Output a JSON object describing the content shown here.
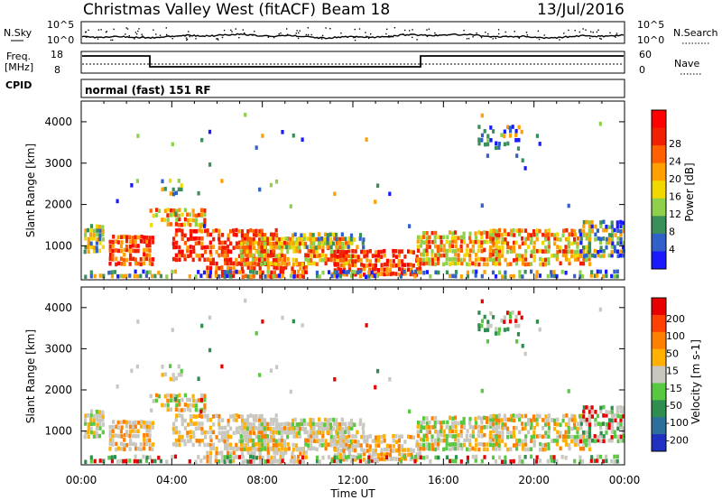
{
  "header": {
    "station": "Christmas Valley West (fitACF)",
    "beam": "Beam 18",
    "date": "13/Jul/2016"
  },
  "sky_panel": {
    "left_label": "N.Sky",
    "right_label": "N.Search",
    "left_ticks": [
      "10^5",
      "10^0"
    ],
    "right_ticks": [
      "10^5",
      "10^0"
    ]
  },
  "freq_panel": {
    "label_line1": "Freq.",
    "label_line2": "[MHz]",
    "left_ticks": [
      "18",
      "8"
    ],
    "right_ticks": [
      "60",
      "0"
    ],
    "right_label": "Nave",
    "cpid_label": "CPID",
    "cpid_value": "normal (fast) 151 RF"
  },
  "chart_data": [
    {
      "type": "heatmap",
      "title": "",
      "xlabel": "Time UT",
      "ylabel": "Slant Range [km]",
      "x_ticks": [
        "00:00",
        "04:00",
        "08:00",
        "12:00",
        "16:00",
        "20:00",
        "00:00"
      ],
      "xlim_hours": [
        0,
        24
      ],
      "ylim": [
        180,
        4500
      ],
      "y_ticks": [
        1000,
        2000,
        3000,
        4000
      ],
      "colorbar": {
        "label": "Power [dB]",
        "ticks": [
          "4",
          "8",
          "12",
          "16",
          "20",
          "24",
          "28"
        ],
        "colors": [
          "#1a1aff",
          "#3060c8",
          "#3a8f5a",
          "#8fd04a",
          "#f0d800",
          "#ffa000",
          "#ff6000",
          "#f02000",
          "#ff0000"
        ]
      }
    },
    {
      "type": "heatmap",
      "title": "",
      "xlabel": "Time UT",
      "ylabel": "Slant Range [km]",
      "x_ticks": [
        "00:00",
        "04:00",
        "08:00",
        "12:00",
        "16:00",
        "20:00",
        "00:00"
      ],
      "xlim_hours": [
        0,
        24
      ],
      "ylim": [
        180,
        4500
      ],
      "y_ticks": [
        1000,
        2000,
        3000,
        4000
      ],
      "colorbar": {
        "label": "Velocity [m s-1]",
        "ticks": [
          "200",
          "100",
          "50",
          "15",
          "-15",
          "-50",
          "-100",
          "-200"
        ],
        "colors": [
          "#2030c0",
          "#2c6f9c",
          "#2f8e4f",
          "#58c840",
          "#c8c8c0",
          "#ffb000",
          "#ff8000",
          "#ff4000",
          "#e80000"
        ]
      }
    }
  ]
}
